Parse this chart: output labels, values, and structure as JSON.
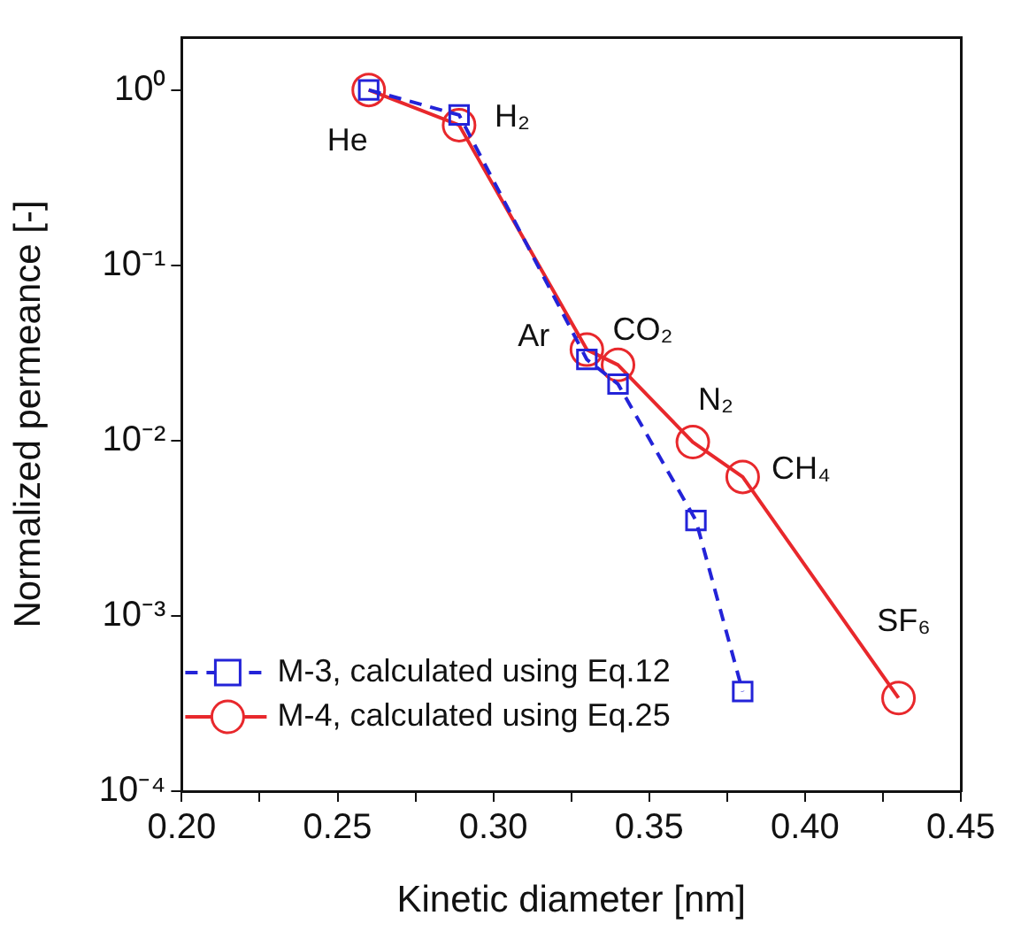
{
  "chart_data": {
    "type": "line",
    "xlabel": "Kinetic diameter [nm]",
    "ylabel": "Normalized permeance [-]",
    "log": "y",
    "xlim": [
      0.2,
      0.45
    ],
    "ylim": [
      0.0001,
      2
    ],
    "xticks": [
      {
        "value": 0.2,
        "label": "0.20"
      },
      {
        "value": 0.225,
        "label": null
      },
      0.25,
      {
        "value": 0.275,
        "label": null
      },
      {
        "value": 0.3,
        "label": "0.30"
      },
      {
        "value": 0.325,
        "label": null
      },
      0.35,
      {
        "value": 0.375,
        "label": null
      },
      {
        "value": 0.4,
        "label": "0.40"
      },
      {
        "value": 0.425,
        "label": null
      },
      0.45
    ],
    "yticks": [
      {
        "value": 0.0001,
        "label": "10⁻⁴"
      },
      {
        "value": 0.001,
        "label": "10⁻³"
      },
      {
        "value": 0.01,
        "label": "10⁻²"
      },
      {
        "value": 0.1,
        "label": "10⁻¹"
      },
      {
        "value": 1,
        "label": "10⁰"
      }
    ],
    "legend": "bottom left",
    "grid": false,
    "series": [
      {
        "name": "M-3, calculated using Eq.12",
        "color": "#2323d8",
        "marker": "square",
        "line_style": "dashed",
        "x": [
          0.26,
          0.289,
          0.33,
          0.34,
          0.365,
          0.38
        ],
        "values": [
          1.0,
          0.72,
          0.029,
          0.021,
          0.0035,
          0.00037
        ]
      },
      {
        "name": "M-4, calculated using Eq.25",
        "color": "#e8282c",
        "marker": "circle",
        "line_style": "solid",
        "x": [
          0.26,
          0.289,
          0.33,
          0.34,
          0.364,
          0.38,
          0.43
        ],
        "values": [
          1.0,
          0.63,
          0.033,
          0.027,
          0.0098,
          0.0062,
          0.00034
        ]
      }
    ],
    "annotations": [
      {
        "text": "He",
        "x": 0.26,
        "y": 1.0
      },
      {
        "text": "H₂",
        "x": 0.289,
        "y": 0.63
      },
      {
        "text": "Ar",
        "x": 0.33,
        "y": 0.033
      },
      {
        "text": "CO₂",
        "x": 0.34,
        "y": 0.027
      },
      {
        "text": "N₂",
        "x": 0.364,
        "y": 0.0098
      },
      {
        "text": "CH₄",
        "x": 0.38,
        "y": 0.0062
      },
      {
        "text": "SF₆",
        "x": 0.43,
        "y": 0.00034
      }
    ]
  }
}
